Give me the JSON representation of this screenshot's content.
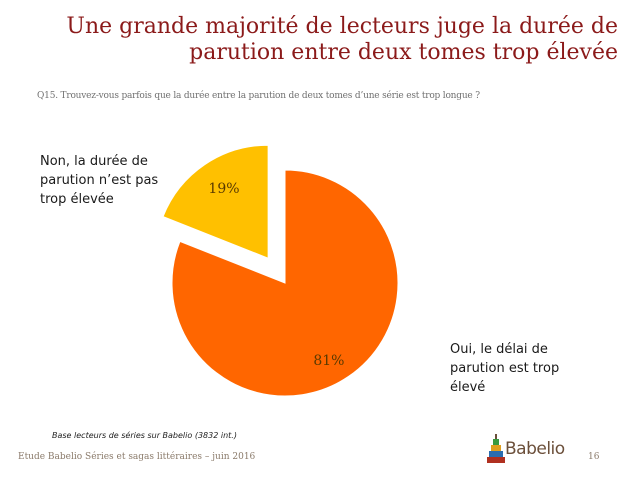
{
  "title_line1": "Une grande majorité de lecteurs juge la durée de",
  "title_line2": "parution entre deux tomes trop élevée",
  "question": "Q15. Trouvez-vous parfois que la durée entre la parution de deux tomes d’une série est trop longue ?",
  "chart_data": {
    "type": "pie",
    "title": "",
    "slices": [
      {
        "label": "Oui, le délai de parution est trop élevé",
        "value": 81,
        "display": "81%",
        "color": "#ff6600",
        "exploded": false
      },
      {
        "label": "Non, la durée de parution n’est pas trop élevée",
        "value": 19,
        "display": "19%",
        "color": "#ffc000",
        "exploded": true
      }
    ]
  },
  "callouts": {
    "non": "Non, la durée de parution n’est pas trop élevée",
    "oui": "Oui, le délai de parution est trop élevé"
  },
  "base_note": "Base lecteurs de séries sur Babelio (3832 int.)",
  "footer": "Etude Babelio Séries et sagas littéraires – juin 2016",
  "page_number": "16",
  "logo_text": "Babelio"
}
